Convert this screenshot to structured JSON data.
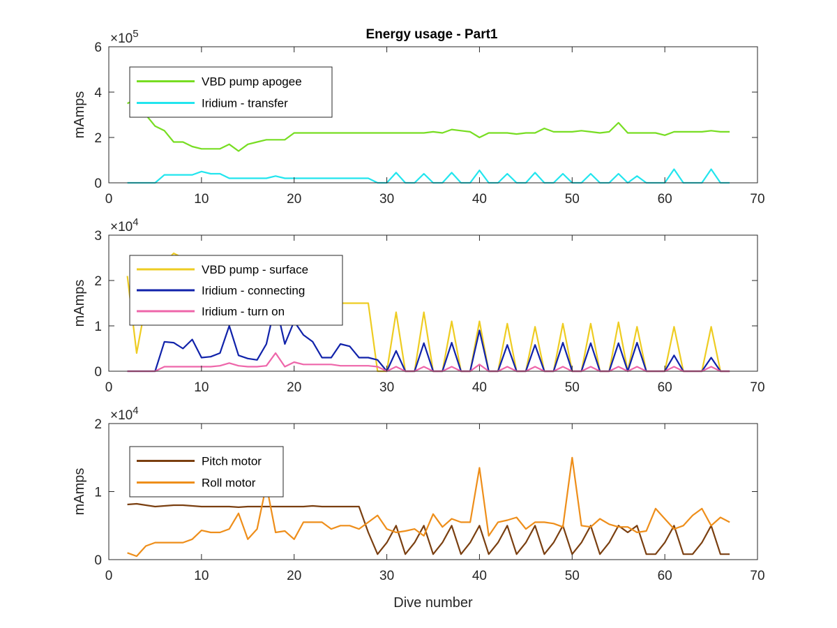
{
  "chart_data": [
    {
      "type": "line",
      "title": "Energy usage - Part1",
      "ylabel": "mAmps",
      "xlabel": "",
      "xlim": [
        0,
        70
      ],
      "xticks": [
        "0",
        "10",
        "20",
        "30",
        "40",
        "50",
        "60",
        "70"
      ],
      "ylim": [
        0,
        600000
      ],
      "y_exponent_label": "×10",
      "y_exponent_power": "5",
      "yticks": [
        "0",
        "2",
        "4",
        "6"
      ],
      "grid": false,
      "legend_position": "top-left",
      "series": [
        {
          "name": "VBD pump apogee",
          "color": "#77dd22",
          "x": [
            2,
            3,
            4,
            5,
            6,
            7,
            8,
            9,
            10,
            11,
            12,
            13,
            14,
            15,
            16,
            17,
            18,
            19,
            20,
            21,
            22,
            23,
            24,
            25,
            26,
            27,
            28,
            29,
            30,
            31,
            32,
            33,
            34,
            35,
            36,
            37,
            38,
            39,
            40,
            41,
            42,
            43,
            44,
            45,
            46,
            47,
            48,
            49,
            50,
            51,
            52,
            53,
            54,
            55,
            56,
            57,
            58,
            59,
            60,
            61,
            62,
            63,
            64,
            65,
            66,
            67
          ],
          "y": [
            350000,
            370000,
            300000,
            250000,
            230000,
            180000,
            180000,
            160000,
            150000,
            150000,
            150000,
            170000,
            140000,
            170000,
            180000,
            190000,
            190000,
            190000,
            220000,
            220000,
            220000,
            220000,
            220000,
            220000,
            220000,
            220000,
            220000,
            220000,
            220000,
            220000,
            220000,
            220000,
            220000,
            225000,
            220000,
            235000,
            230000,
            225000,
            200000,
            220000,
            220000,
            220000,
            215000,
            220000,
            220000,
            240000,
            225000,
            225000,
            225000,
            230000,
            225000,
            220000,
            225000,
            265000,
            220000,
            220000,
            220000,
            220000,
            210000,
            225000,
            225000,
            225000,
            225000,
            230000,
            225000,
            225000
          ]
        },
        {
          "name": "Iridium - transfer",
          "color": "#22e5ee",
          "x": [
            2,
            3,
            4,
            5,
            6,
            7,
            8,
            9,
            10,
            11,
            12,
            13,
            14,
            15,
            16,
            17,
            18,
            19,
            20,
            21,
            22,
            23,
            24,
            25,
            26,
            27,
            28,
            29,
            30,
            31,
            32,
            33,
            34,
            35,
            36,
            37,
            38,
            39,
            40,
            41,
            42,
            43,
            44,
            45,
            46,
            47,
            48,
            49,
            50,
            51,
            52,
            53,
            54,
            55,
            56,
            57,
            58,
            59,
            60,
            61,
            62,
            63,
            64,
            65,
            66,
            67
          ],
          "y": [
            0,
            0,
            0,
            0,
            35000,
            35000,
            35000,
            35000,
            50000,
            40000,
            40000,
            20000,
            20000,
            20000,
            20000,
            20000,
            30000,
            20000,
            20000,
            20000,
            20000,
            20000,
            20000,
            20000,
            20000,
            20000,
            20000,
            0,
            0,
            45000,
            0,
            0,
            40000,
            0,
            0,
            45000,
            0,
            0,
            55000,
            0,
            0,
            40000,
            0,
            0,
            45000,
            0,
            0,
            40000,
            0,
            0,
            40000,
            0,
            0,
            40000,
            0,
            30000,
            0,
            0,
            0,
            60000,
            0,
            0,
            0,
            60000,
            0,
            0
          ]
        }
      ]
    },
    {
      "type": "line",
      "title": "",
      "ylabel": "mAmps",
      "xlabel": "",
      "xlim": [
        0,
        70
      ],
      "xticks": [
        "0",
        "10",
        "20",
        "30",
        "40",
        "50",
        "60",
        "70"
      ],
      "ylim": [
        0,
        30000
      ],
      "y_exponent_label": "×10",
      "y_exponent_power": "4",
      "yticks": [
        "0",
        "1",
        "2",
        "3"
      ],
      "grid": false,
      "legend_position": "top-left",
      "series": [
        {
          "name": "VBD pump - surface",
          "color": "#eecc22",
          "x": [
            2,
            3,
            4,
            5,
            6,
            7,
            8,
            9,
            10,
            11,
            12,
            13,
            14,
            15,
            16,
            17,
            18,
            19,
            20,
            21,
            22,
            23,
            24,
            25,
            26,
            27,
            28,
            29,
            30,
            31,
            32,
            33,
            34,
            35,
            36,
            37,
            38,
            39,
            40,
            41,
            42,
            43,
            44,
            45,
            46,
            47,
            48,
            49,
            50,
            51,
            52,
            53,
            54,
            55,
            56,
            57,
            58,
            59,
            60,
            61,
            62,
            63,
            64,
            65,
            66,
            67
          ],
          "y": [
            21000,
            4000,
            15000,
            20000,
            24000,
            26000,
            25000,
            22000,
            20000,
            18000,
            17000,
            15000,
            16000,
            15000,
            15000,
            14000,
            14000,
            15000,
            15000,
            15000,
            15000,
            15000,
            15000,
            15000,
            15000,
            15000,
            15000,
            0,
            0,
            13000,
            0,
            0,
            13000,
            0,
            0,
            11000,
            0,
            0,
            11000,
            0,
            0,
            10500,
            0,
            0,
            9800,
            0,
            0,
            10500,
            0,
            0,
            10500,
            0,
            0,
            10800,
            0,
            9800,
            0,
            0,
            0,
            9800,
            0,
            0,
            0,
            9800,
            0,
            0
          ]
        },
        {
          "name": "Iridium - connecting",
          "color": "#1022aa",
          "x": [
            2,
            3,
            4,
            5,
            6,
            7,
            8,
            9,
            10,
            11,
            12,
            13,
            14,
            15,
            16,
            17,
            18,
            19,
            20,
            21,
            22,
            23,
            24,
            25,
            26,
            27,
            28,
            29,
            30,
            31,
            32,
            33,
            34,
            35,
            36,
            37,
            38,
            39,
            40,
            41,
            42,
            43,
            44,
            45,
            46,
            47,
            48,
            49,
            50,
            51,
            52,
            53,
            54,
            55,
            56,
            57,
            58,
            59,
            60,
            61,
            62,
            63,
            64,
            65,
            66,
            67
          ],
          "y": [
            0,
            0,
            0,
            0,
            6500,
            6300,
            5000,
            7000,
            3000,
            3200,
            4000,
            10000,
            3500,
            2800,
            2500,
            6000,
            15000,
            6000,
            11000,
            8000,
            6500,
            3000,
            3000,
            6000,
            5500,
            3000,
            3000,
            2500,
            0,
            4500,
            0,
            0,
            6200,
            0,
            0,
            6300,
            0,
            0,
            9000,
            0,
            0,
            5800,
            0,
            0,
            5800,
            0,
            0,
            6300,
            0,
            0,
            6200,
            0,
            0,
            6200,
            0,
            6300,
            0,
            0,
            0,
            3500,
            0,
            0,
            0,
            3000,
            0,
            0
          ]
        },
        {
          "name": "Iridium - turn on",
          "color": "#ee66aa",
          "x": [
            2,
            3,
            4,
            5,
            6,
            7,
            8,
            9,
            10,
            11,
            12,
            13,
            14,
            15,
            16,
            17,
            18,
            19,
            20,
            21,
            22,
            23,
            24,
            25,
            26,
            27,
            28,
            29,
            30,
            31,
            32,
            33,
            34,
            35,
            36,
            37,
            38,
            39,
            40,
            41,
            42,
            43,
            44,
            45,
            46,
            47,
            48,
            49,
            50,
            51,
            52,
            53,
            54,
            55,
            56,
            57,
            58,
            59,
            60,
            61,
            62,
            63,
            64,
            65,
            66,
            67
          ],
          "y": [
            0,
            0,
            0,
            0,
            1000,
            1000,
            1000,
            1000,
            1000,
            1000,
            1200,
            1800,
            1200,
            1000,
            1000,
            1200,
            4000,
            1000,
            2000,
            1500,
            1500,
            1500,
            1500,
            1200,
            1200,
            1200,
            1200,
            1000,
            0,
            1000,
            0,
            0,
            1000,
            0,
            0,
            1000,
            0,
            0,
            1500,
            0,
            0,
            1000,
            0,
            0,
            1000,
            0,
            0,
            1000,
            0,
            0,
            1000,
            0,
            0,
            1000,
            0,
            1000,
            0,
            0,
            0,
            1000,
            0,
            0,
            0,
            1000,
            0,
            0
          ]
        }
      ]
    },
    {
      "type": "line",
      "title": "",
      "ylabel": "mAmps",
      "xlabel": "Dive number",
      "xlim": [
        0,
        70
      ],
      "xticks": [
        "0",
        "10",
        "20",
        "30",
        "40",
        "50",
        "60",
        "70"
      ],
      "ylim": [
        0,
        20000
      ],
      "y_exponent_label": "×10",
      "y_exponent_power": "4",
      "yticks": [
        "0",
        "1",
        "2"
      ],
      "grid": false,
      "legend_position": "top-left",
      "series": [
        {
          "name": "Pitch motor",
          "color": "#7a3f10",
          "x": [
            2,
            3,
            4,
            5,
            6,
            7,
            8,
            9,
            10,
            11,
            12,
            13,
            14,
            15,
            16,
            17,
            18,
            19,
            20,
            21,
            22,
            23,
            24,
            25,
            26,
            27,
            28,
            29,
            30,
            31,
            32,
            33,
            34,
            35,
            36,
            37,
            38,
            39,
            40,
            41,
            42,
            43,
            44,
            45,
            46,
            47,
            48,
            49,
            50,
            51,
            52,
            53,
            54,
            55,
            56,
            57,
            58,
            59,
            60,
            61,
            62,
            63,
            64,
            65,
            66,
            67
          ],
          "y": [
            8100,
            8200,
            8000,
            7800,
            7900,
            8000,
            8000,
            7900,
            7800,
            7800,
            7800,
            7800,
            7700,
            7800,
            7800,
            7800,
            7800,
            7800,
            7800,
            7800,
            7900,
            7800,
            7800,
            7800,
            7800,
            7800,
            4000,
            800,
            2500,
            5000,
            800,
            2500,
            5000,
            800,
            2500,
            5000,
            800,
            2500,
            5000,
            800,
            2500,
            5000,
            800,
            2500,
            5000,
            800,
            2500,
            5000,
            800,
            2500,
            5000,
            800,
            2500,
            5000,
            4000,
            5000,
            800,
            800,
            2500,
            5000,
            800,
            800,
            2500,
            5000,
            800,
            800
          ]
        },
        {
          "name": "Roll motor",
          "color": "#ee8e1a",
          "x": [
            2,
            3,
            4,
            5,
            6,
            7,
            8,
            9,
            10,
            11,
            12,
            13,
            14,
            15,
            16,
            17,
            18,
            19,
            20,
            21,
            22,
            23,
            24,
            25,
            26,
            27,
            28,
            29,
            30,
            31,
            32,
            33,
            34,
            35,
            36,
            37,
            38,
            39,
            40,
            41,
            42,
            43,
            44,
            45,
            46,
            47,
            48,
            49,
            50,
            51,
            52,
            53,
            54,
            55,
            56,
            57,
            58,
            59,
            60,
            61,
            62,
            63,
            64,
            65,
            66,
            67
          ],
          "y": [
            1000,
            500,
            2000,
            2500,
            2500,
            2500,
            2500,
            3000,
            4300,
            4000,
            4000,
            4500,
            6800,
            3000,
            4500,
            11000,
            4000,
            4200,
            3000,
            5500,
            5500,
            5500,
            4500,
            5000,
            5000,
            4500,
            5500,
            6500,
            4500,
            4000,
            4200,
            4500,
            3500,
            6700,
            4800,
            6000,
            5500,
            5500,
            13500,
            3500,
            5500,
            5800,
            6200,
            4500,
            5500,
            5500,
            5300,
            4800,
            15000,
            5000,
            4800,
            6000,
            5200,
            4800,
            4800,
            4000,
            4200,
            7500,
            6000,
            4500,
            5000,
            6500,
            7500,
            5000,
            6200,
            5500
          ]
        }
      ]
    }
  ]
}
